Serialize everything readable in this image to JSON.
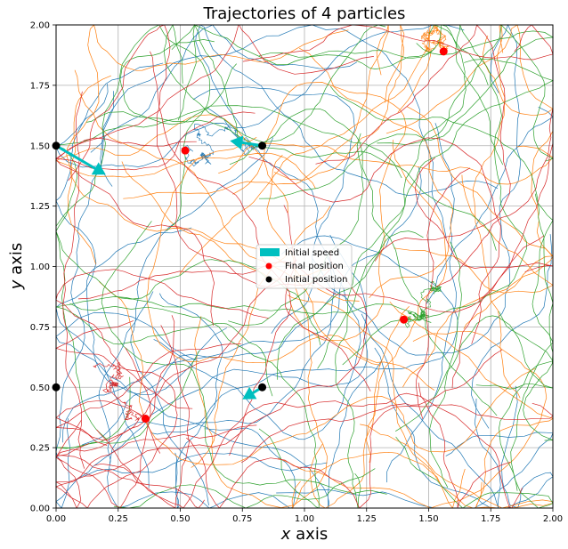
{
  "chart_data": {
    "type": "scatter",
    "title": "Trajectories of 4 particles",
    "xlabel_var": "x",
    "xlabel_word": " axis",
    "ylabel_var": "y",
    "ylabel_word": " axis",
    "xlim": [
      0,
      2
    ],
    "ylim": [
      0,
      2
    ],
    "xticks": [
      "0.00",
      "0.25",
      "0.50",
      "0.75",
      "1.00",
      "1.25",
      "1.50",
      "1.75",
      "2.00"
    ],
    "yticks": [
      "0.00",
      "0.25",
      "0.50",
      "0.75",
      "1.00",
      "1.25",
      "1.50",
      "1.75",
      "2.00"
    ],
    "grid": true,
    "legend_position": "center",
    "legend": [
      {
        "label": "Initial speed",
        "marker": "arrow",
        "color": "#00bfbf"
      },
      {
        "label": "Final position",
        "marker": "dot",
        "color": "#ff0000"
      },
      {
        "label": "Initial position",
        "marker": "dot",
        "color": "#000000"
      }
    ],
    "particles": [
      {
        "color": "#1f77b4",
        "initial_position": [
          0.0,
          1.5
        ],
        "initial_speed_tip": [
          0.2,
          1.38
        ],
        "final_position": [
          0.52,
          1.48
        ]
      },
      {
        "color": "#ff7f0e",
        "initial_position": [
          0.83,
          1.5
        ],
        "initial_speed_tip": [
          0.7,
          1.52
        ],
        "final_position": [
          1.56,
          1.89
        ]
      },
      {
        "color": "#2ca02c",
        "initial_position": [
          0.83,
          0.5
        ],
        "initial_speed_tip": [
          0.75,
          0.45
        ],
        "final_position": [
          1.4,
          0.78
        ]
      },
      {
        "color": "#d62728",
        "initial_position": [
          0.0,
          0.5
        ],
        "initial_speed_tip": [
          0.02,
          0.5
        ],
        "final_position": [
          0.36,
          0.37
        ]
      }
    ]
  }
}
